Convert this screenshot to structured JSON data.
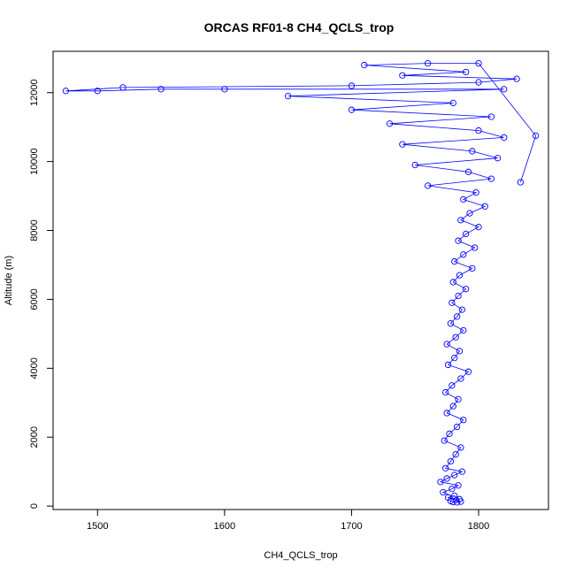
{
  "chart_data": {
    "type": "scatter",
    "title": "ORCAS RF01-8 CH4_QCLS_trop",
    "xlabel": "CH4_QCLS_trop",
    "ylabel": "Altitude (m)",
    "xlim": [
      1465,
      1855
    ],
    "ylim": [
      -100,
      13200
    ],
    "xticks": [
      1500,
      1600,
      1700,
      1800
    ],
    "yticks": [
      0,
      2000,
      4000,
      6000,
      8000,
      10000,
      12000
    ],
    "marker": "open-circle",
    "grid": false,
    "legend": "none",
    "color": "#0000ff",
    "series": [
      {
        "points": [
          [
            1778,
            150
          ],
          [
            1780,
            120
          ],
          [
            1783,
            110
          ],
          [
            1786,
            130
          ],
          [
            1776,
            250
          ],
          [
            1781,
            300
          ],
          [
            1785,
            200
          ],
          [
            1772,
            400
          ],
          [
            1779,
            500
          ],
          [
            1784,
            600
          ],
          [
            1770,
            700
          ],
          [
            1775,
            800
          ],
          [
            1781,
            900
          ],
          [
            1787,
            1000
          ],
          [
            1774,
            1100
          ],
          [
            1778,
            1300
          ],
          [
            1782,
            1500
          ],
          [
            1786,
            1700
          ],
          [
            1773,
            1900
          ],
          [
            1777,
            2100
          ],
          [
            1783,
            2300
          ],
          [
            1788,
            2500
          ],
          [
            1775,
            2700
          ],
          [
            1780,
            2900
          ],
          [
            1784,
            3100
          ],
          [
            1774,
            3300
          ],
          [
            1779,
            3500
          ],
          [
            1786,
            3700
          ],
          [
            1792,
            3900
          ],
          [
            1776,
            4100
          ],
          [
            1781,
            4300
          ],
          [
            1785,
            4500
          ],
          [
            1775,
            4700
          ],
          [
            1782,
            4900
          ],
          [
            1788,
            5100
          ],
          [
            1778,
            5300
          ],
          [
            1783,
            5500
          ],
          [
            1787,
            5700
          ],
          [
            1779,
            5900
          ],
          [
            1784,
            6100
          ],
          [
            1790,
            6300
          ],
          [
            1780,
            6500
          ],
          [
            1785,
            6700
          ],
          [
            1795,
            6900
          ],
          [
            1781,
            7100
          ],
          [
            1788,
            7300
          ],
          [
            1797,
            7500
          ],
          [
            1784,
            7700
          ],
          [
            1790,
            7900
          ],
          [
            1800,
            8100
          ],
          [
            1786,
            8300
          ],
          [
            1793,
            8500
          ],
          [
            1805,
            8700
          ],
          [
            1788,
            8900
          ],
          [
            1798,
            9100
          ],
          [
            1760,
            9300
          ],
          [
            1810,
            9500
          ],
          [
            1792,
            9700
          ],
          [
            1750,
            9900
          ],
          [
            1815,
            10100
          ],
          [
            1795,
            10300
          ],
          [
            1740,
            10500
          ],
          [
            1820,
            10700
          ],
          [
            1800,
            10900
          ],
          [
            1730,
            11100
          ],
          [
            1810,
            11300
          ],
          [
            1700,
            11500
          ],
          [
            1780,
            11700
          ],
          [
            1650,
            11900
          ],
          [
            1820,
            12100
          ],
          [
            1600,
            12100
          ],
          [
            1550,
            12100
          ],
          [
            1500,
            12050
          ],
          [
            1475,
            12050
          ],
          [
            1520,
            12150
          ],
          [
            1700,
            12200
          ],
          [
            1800,
            12300
          ],
          [
            1830,
            12400
          ],
          [
            1740,
            12500
          ],
          [
            1790,
            12600
          ],
          [
            1710,
            12800
          ],
          [
            1760,
            12850
          ],
          [
            1800,
            12850
          ],
          [
            1845,
            10750
          ],
          [
            1833,
            9400
          ]
        ]
      }
    ]
  }
}
